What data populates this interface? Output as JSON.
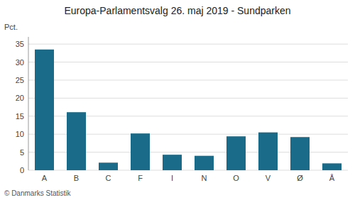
{
  "chart_data": {
    "type": "bar",
    "title": "Europa-Parlamentsvalg 26. maj 2019 - Sundparken",
    "categories": [
      "A",
      "B",
      "C",
      "F",
      "I",
      "N",
      "O",
      "V",
      "Ø",
      "Å"
    ],
    "values": [
      33.5,
      16.1,
      2.1,
      10.2,
      4.3,
      4.0,
      9.4,
      10.5,
      9.2,
      1.9
    ],
    "color": "#1a6b8a",
    "y_label": "Pct.",
    "ylim": [
      0,
      37
    ],
    "yticks": [
      0,
      5,
      10,
      15,
      20,
      25,
      30,
      35
    ],
    "grid": true,
    "annotations": [
      "© Danmarks Statistik"
    ]
  }
}
